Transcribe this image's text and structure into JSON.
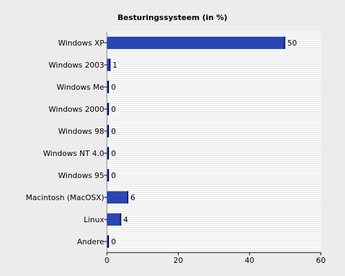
{
  "chart_data": {
    "type": "bar",
    "orientation": "horizontal",
    "title": "Besturingssysteem (in %)",
    "xlabel": "",
    "ylabel": "",
    "categories": [
      "Windows XP",
      "Windows 2003",
      "Windows Me",
      "Windows 2000",
      "Windows 98",
      "Windows NT 4.0",
      "Windows 95",
      "Macintosh (MacOSX)",
      "Linux",
      "Andere"
    ],
    "values": [
      50,
      1,
      0,
      0,
      0,
      0,
      0,
      6,
      4,
      0
    ],
    "value_labels": [
      "50",
      "1",
      "0",
      "0",
      "0",
      "0",
      "0",
      "6",
      "4",
      "0"
    ],
    "xlim": [
      0,
      60
    ],
    "xticks": [
      0,
      20,
      40,
      60
    ],
    "grid": "horizontal stripes",
    "legend": "none",
    "colors": {
      "bar_fill": "#2b46b4",
      "bar_edge": "#0f1f5e",
      "background": "#ececec",
      "plot_background": "#ffffff",
      "grid_line": "#dcdcdc",
      "text": "#000000"
    }
  }
}
